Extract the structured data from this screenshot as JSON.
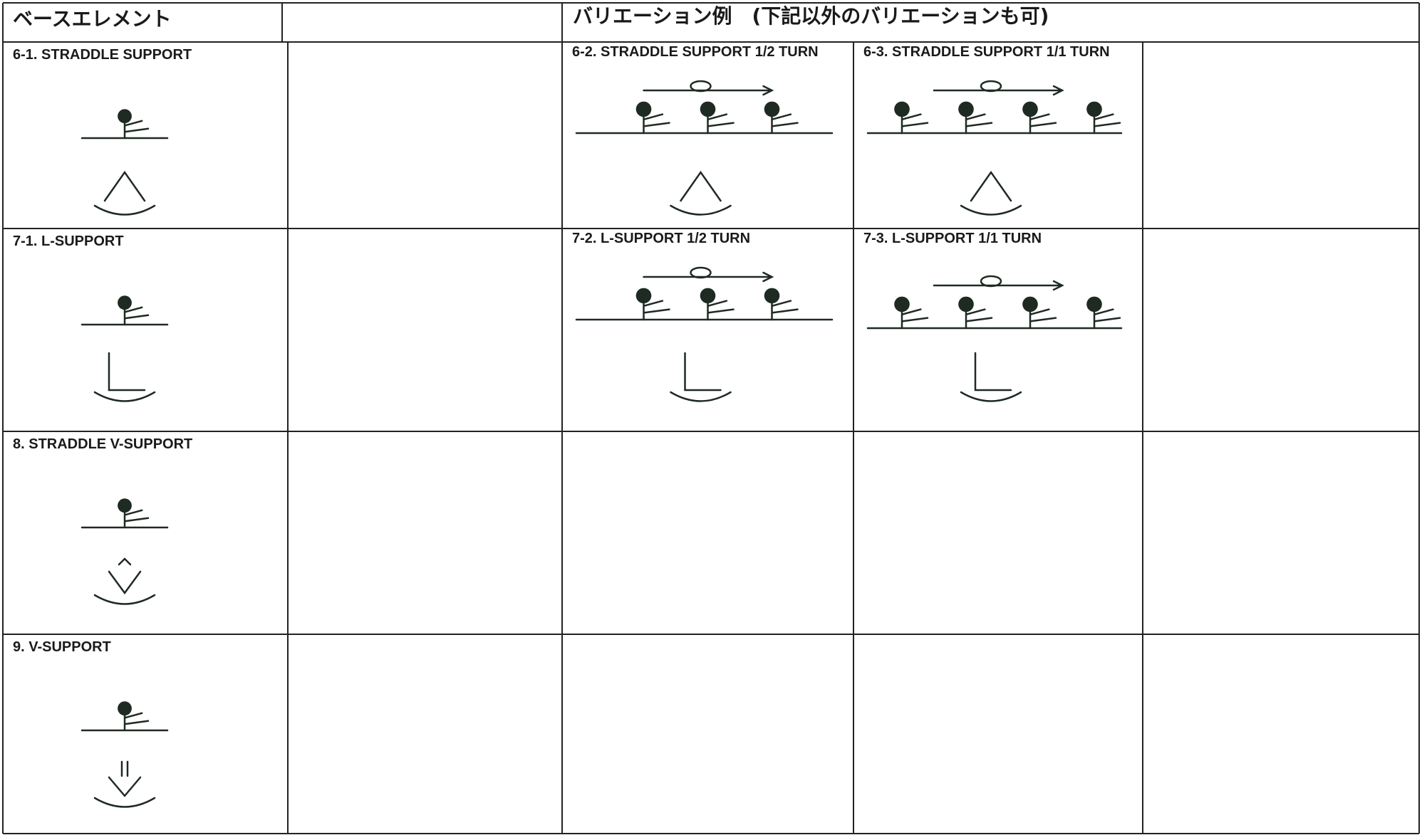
{
  "header": {
    "base": "ベースエレメント",
    "variations": "バリエーション例　(下記以外のバリエーションも可)"
  },
  "table": {
    "rows": [
      {
        "base": "6-1.  STRADDLE  SUPPORT",
        "variations": [
          "6-2. STRADDLE SUPPORT 1/2 TURN",
          "6-3.  STRADDLE SUPPORT 1/1 TURN"
        ]
      },
      {
        "base": "7-1.  L-SUPPORT",
        "variations": [
          "7-2.  L-SUPPORT 1/2 TURN",
          "7-3.  L-SUPPORT 1/1 TURN"
        ]
      },
      {
        "base": "8.  STRADDLE V-SUPPORT",
        "variations": []
      },
      {
        "base": "9.  V-SUPPORT",
        "variations": []
      }
    ]
  }
}
